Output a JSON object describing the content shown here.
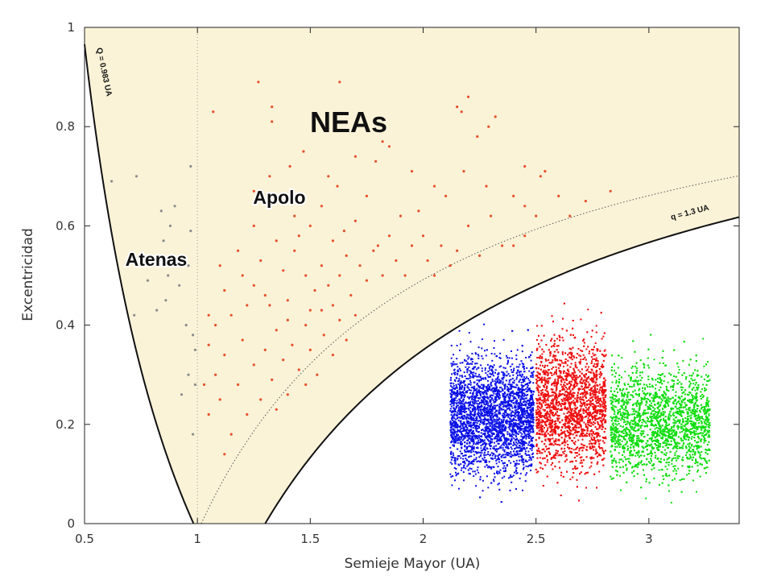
{
  "chart_data": {
    "type": "scatter",
    "xlabel": "Semieje Mayor (UA)",
    "ylabel": "Excentricidad",
    "xlim": [
      0.5,
      3.4
    ],
    "ylim": [
      0,
      1
    ],
    "x_ticks": [
      "0.5",
      "1",
      "1.5",
      "2",
      "2.5",
      "3"
    ],
    "x_tick_values": [
      0.5,
      1,
      1.5,
      2,
      2.5,
      3
    ],
    "y_ticks": [
      "0",
      "0.2",
      "0.4",
      "0.6",
      "0.8",
      "1"
    ],
    "y_tick_values": [
      0,
      0.2,
      0.4,
      0.6,
      0.8,
      1
    ],
    "grid": false,
    "colors": {
      "nea_region": "#faf3d8",
      "apolo_points": "#e8502a",
      "atenas_points": "#8c8c8c",
      "band_inner": "#0a10e6",
      "band_middle": "#ee1010",
      "band_outer": "#10dd10"
    },
    "annotations": {
      "nea_label": "NEAs",
      "apolo_label": "Apolo",
      "atenas_label": "Atenas",
      "Q_curve_label": "Q = 0.983 UA",
      "q_curve_label": "q = 1.3 UA"
    },
    "curves": [
      {
        "label": "Q = 0.983 UA",
        "equation": "e = 0.983/a - 1",
        "style": "solid"
      },
      {
        "label": "q = 1.3 UA",
        "equation": "e = 1 - 1.3/a",
        "style": "solid"
      },
      {
        "label": "",
        "equation": "e = 1 - 1.017/a",
        "style": "dotted"
      },
      {
        "label": "",
        "equation": "a = 1",
        "style": "dotted"
      }
    ],
    "atenas_points": [
      [
        0.62,
        0.69
      ],
      [
        0.73,
        0.7
      ],
      [
        0.72,
        0.42
      ],
      [
        0.78,
        0.49
      ],
      [
        0.82,
        0.43
      ],
      [
        0.84,
        0.63
      ],
      [
        0.85,
        0.57
      ],
      [
        0.86,
        0.45
      ],
      [
        0.88,
        0.6
      ],
      [
        0.87,
        0.5
      ],
      [
        0.9,
        0.64
      ],
      [
        0.93,
        0.26
      ],
      [
        0.95,
        0.4
      ],
      [
        0.96,
        0.3
      ],
      [
        0.97,
        0.59
      ],
      [
        0.97,
        0.72
      ],
      [
        0.98,
        0.38
      ],
      [
        0.98,
        0.18
      ],
      [
        0.99,
        0.28
      ],
      [
        0.99,
        0.35
      ],
      [
        0.96,
        0.52
      ],
      [
        0.92,
        0.48
      ]
    ],
    "apolo_points": [
      [
        1.07,
        0.83
      ],
      [
        1.27,
        0.89
      ],
      [
        1.33,
        0.84
      ],
      [
        1.33,
        0.81
      ],
      [
        1.63,
        0.89
      ],
      [
        1.47,
        0.75
      ],
      [
        1.7,
        0.74
      ],
      [
        1.75,
        0.66
      ],
      [
        1.79,
        0.73
      ],
      [
        1.82,
        0.77
      ],
      [
        1.85,
        0.76
      ],
      [
        1.98,
        0.63
      ],
      [
        2.15,
        0.84
      ],
      [
        2.17,
        0.83
      ],
      [
        2.2,
        0.86
      ],
      [
        2.24,
        0.78
      ],
      [
        2.29,
        0.8
      ],
      [
        2.32,
        0.82
      ],
      [
        2.18,
        0.71
      ],
      [
        2.45,
        0.72
      ],
      [
        2.52,
        0.7
      ],
      [
        2.54,
        0.71
      ],
      [
        2.4,
        0.66
      ],
      [
        2.45,
        0.64
      ],
      [
        2.5,
        0.62
      ],
      [
        2.72,
        0.65
      ],
      [
        2.83,
        0.67
      ],
      [
        2.65,
        0.62
      ],
      [
        1.25,
        0.67
      ],
      [
        1.32,
        0.7
      ],
      [
        1.38,
        0.66
      ],
      [
        1.43,
        0.62
      ],
      [
        1.5,
        0.6
      ],
      [
        1.55,
        0.64
      ],
      [
        1.6,
        0.57
      ],
      [
        1.65,
        0.59
      ],
      [
        1.7,
        0.61
      ],
      [
        1.8,
        0.56
      ],
      [
        1.9,
        0.62
      ],
      [
        2.0,
        0.58
      ],
      [
        2.1,
        0.66
      ],
      [
        2.2,
        0.6
      ],
      [
        2.3,
        0.62
      ],
      [
        2.35,
        0.56
      ],
      [
        1.1,
        0.52
      ],
      [
        1.12,
        0.47
      ],
      [
        1.15,
        0.42
      ],
      [
        1.18,
        0.55
      ],
      [
        1.2,
        0.5
      ],
      [
        1.22,
        0.44
      ],
      [
        1.25,
        0.48
      ],
      [
        1.28,
        0.53
      ],
      [
        1.3,
        0.46
      ],
      [
        1.35,
        0.57
      ],
      [
        1.38,
        0.51
      ],
      [
        1.4,
        0.45
      ],
      [
        1.43,
        0.55
      ],
      [
        1.45,
        0.58
      ],
      [
        1.48,
        0.5
      ],
      [
        1.5,
        0.43
      ],
      [
        1.52,
        0.47
      ],
      [
        1.55,
        0.52
      ],
      [
        1.58,
        0.48
      ],
      [
        1.6,
        0.44
      ],
      [
        1.63,
        0.5
      ],
      [
        1.66,
        0.54
      ],
      [
        1.68,
        0.46
      ],
      [
        1.72,
        0.52
      ],
      [
        1.75,
        0.49
      ],
      [
        1.78,
        0.55
      ],
      [
        1.82,
        0.5
      ],
      [
        1.85,
        0.58
      ],
      [
        1.88,
        0.53
      ],
      [
        1.92,
        0.5
      ],
      [
        1.95,
        0.56
      ],
      [
        2.02,
        0.53
      ],
      [
        2.05,
        0.5
      ],
      [
        2.08,
        0.56
      ],
      [
        2.12,
        0.52
      ],
      [
        2.15,
        0.55
      ],
      [
        2.25,
        0.54
      ],
      [
        2.4,
        0.56
      ],
      [
        2.45,
        0.58
      ],
      [
        1.05,
        0.36
      ],
      [
        1.08,
        0.3
      ],
      [
        1.1,
        0.25
      ],
      [
        1.12,
        0.34
      ],
      [
        1.15,
        0.18
      ],
      [
        1.18,
        0.28
      ],
      [
        1.2,
        0.37
      ],
      [
        1.22,
        0.22
      ],
      [
        1.25,
        0.32
      ],
      [
        1.28,
        0.25
      ],
      [
        1.3,
        0.35
      ],
      [
        1.33,
        0.29
      ],
      [
        1.35,
        0.39
      ],
      [
        1.38,
        0.33
      ],
      [
        1.4,
        0.26
      ],
      [
        1.42,
        0.36
      ],
      [
        1.45,
        0.31
      ],
      [
        1.48,
        0.4
      ],
      [
        1.5,
        0.35
      ],
      [
        1.53,
        0.3
      ],
      [
        1.56,
        0.38
      ],
      [
        1.6,
        0.34
      ],
      [
        1.63,
        0.41
      ],
      [
        1.66,
        0.37
      ],
      [
        1.7,
        0.42
      ],
      [
        1.05,
        0.42
      ],
      [
        1.08,
        0.4
      ],
      [
        1.12,
        0.14
      ],
      [
        1.05,
        0.22
      ],
      [
        1.03,
        0.28
      ],
      [
        1.4,
        0.41
      ],
      [
        1.55,
        0.43
      ],
      [
        1.48,
        0.28
      ],
      [
        1.35,
        0.23
      ],
      [
        1.32,
        0.44
      ],
      [
        1.25,
        0.6
      ],
      [
        1.58,
        0.7
      ],
      [
        1.62,
        0.68
      ],
      [
        1.41,
        0.72
      ],
      [
        1.95,
        0.71
      ],
      [
        2.05,
        0.68
      ],
      [
        2.28,
        0.68
      ],
      [
        2.6,
        0.66
      ]
    ],
    "bands": [
      {
        "name": "",
        "color": "#0a10e6",
        "a_range": [
          2.12,
          2.49
        ],
        "e_max": 0.36,
        "e_min": 0.02
      },
      {
        "name": "",
        "color": "#ee1010",
        "a_range": [
          2.5,
          2.81
        ],
        "e_max": 0.4,
        "e_min": 0.02
      },
      {
        "name": "",
        "color": "#10dd10",
        "a_range": [
          2.83,
          3.27
        ],
        "e_max": 0.34,
        "e_min": 0.02
      }
    ]
  }
}
